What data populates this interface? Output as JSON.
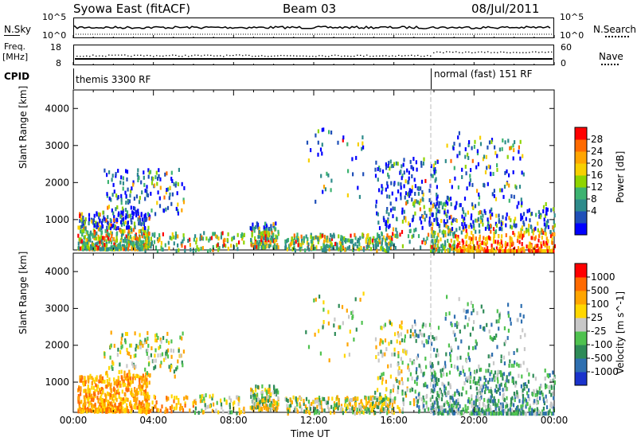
{
  "header": {
    "radar": "Syowa East (fitACF)",
    "beam": "Beam 03",
    "date": "08/Jul/2011"
  },
  "top_panels": {
    "nsky_label": "N.Sky",
    "nsky_ticks": [
      "10^5",
      "10^0"
    ],
    "nsearch_label": "N.Search",
    "nsearch_ticks": [
      "10^5",
      "10^0"
    ],
    "freq_label_1": "Freq.",
    "freq_label_2": "[MHz]",
    "freq_ticks": [
      "18",
      "8"
    ],
    "nave_label": "Nave",
    "nave_ticks": [
      "60",
      "0"
    ],
    "cpid_label": "CPID",
    "cpid_modes": [
      "themis 3300 RF",
      "normal (fast) 151 RF"
    ]
  },
  "chart_data": [
    {
      "type": "heatmap",
      "title": "",
      "ylabel": "Slant Range [km]",
      "xlabel": "",
      "ylim": [
        180,
        4500
      ],
      "y_ticks": [
        "4000",
        "3000",
        "2000",
        "1000"
      ],
      "colorbar": {
        "label": "Power [dB]",
        "ticks": [
          "28",
          "24",
          "20",
          "16",
          "12",
          "8",
          "4"
        ],
        "colors": [
          "#0000ff",
          "#1f4fb8",
          "#2e8b8b",
          "#3cb371",
          "#8fd400",
          "#f7d000",
          "#ffa500",
          "#ff6a00",
          "#ff0000"
        ]
      }
    },
    {
      "type": "heatmap",
      "title": "",
      "ylabel": "Slant Range [km]",
      "xlabel": "Time UT",
      "ylim": [
        180,
        4500
      ],
      "y_ticks": [
        "4000",
        "3000",
        "2000",
        "1000"
      ],
      "x_ticks": [
        "00:00",
        "04:00",
        "08:00",
        "12:00",
        "16:00",
        "20:00",
        "00:00"
      ],
      "colorbar": {
        "label": "Velocity [m s^-1]",
        "ticks": [
          "1000",
          "500",
          "100",
          "25",
          "-25",
          "-100",
          "-500",
          "-1000"
        ],
        "colors": [
          "#1a33cc",
          "#2e6fb0",
          "#2e8b57",
          "#4fc24f",
          "#c8c8c8",
          "#ffd700",
          "#ffa500",
          "#ff6a00",
          "#ff0000"
        ]
      }
    }
  ]
}
